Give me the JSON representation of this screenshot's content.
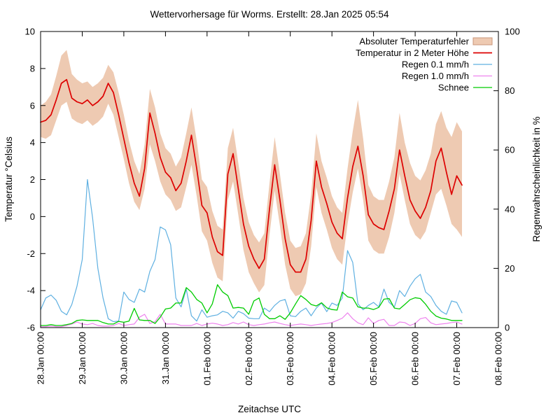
{
  "chart_data": {
    "type": "line",
    "title": "Wettervorhersage für Worms. Erstellt: 28.Jan 2025 05:54",
    "x_label": "Zeitachse UTC",
    "grid": false,
    "legend_position": "top-right-inside",
    "y_left": {
      "label": "Temperatur °Celsius",
      "min": -6,
      "max": 10,
      "ticks": [
        -6,
        -4,
        -2,
        0,
        2,
        4,
        6,
        8,
        10
      ]
    },
    "y_right": {
      "label": "Regenwahrscheinlichkeit in %",
      "min": 0,
      "max": 100,
      "ticks": [
        0,
        20,
        40,
        60,
        80,
        100
      ]
    },
    "x_ticks": [
      "28.Jan 00:00",
      "29.Jan 00:00",
      "30.Jan 00:00",
      "31.Jan 00:00",
      "01.Feb 00:00",
      "02.Feb 00:00",
      "03.Feb 00:00",
      "04.Feb 00:00",
      "05.Feb 00:00",
      "06.Feb 00:00",
      "07.Feb 00:00",
      "08.Feb 00:00"
    ],
    "x_span_days": 11,
    "sample_step_hours": 3,
    "data_end_hour": 243,
    "series": [
      {
        "name": "Absoluter Temperaturfehler",
        "kind": "band",
        "axis": "left",
        "color": "#eecab2",
        "border_color": "#c9977b",
        "upper": [
          6.0,
          6.2,
          6.6,
          7.6,
          8.7,
          9.0,
          7.7,
          7.4,
          7.2,
          7.3,
          7.0,
          7.2,
          7.5,
          8.2,
          7.8,
          6.7,
          5.5,
          4.1,
          3.0,
          2.3,
          3.9,
          6.9,
          5.9,
          4.5,
          3.7,
          3.4,
          2.7,
          3.2,
          4.5,
          5.9,
          4.1,
          2.0,
          1.6,
          0.3,
          -0.5,
          -0.7,
          3.7,
          4.8,
          2.9,
          1.0,
          -0.3,
          -1.0,
          -1.4,
          -0.9,
          1.8,
          4.3,
          2.3,
          0.2,
          -1.3,
          -1.7,
          -1.6,
          -0.9,
          1.2,
          4.5,
          3.0,
          2.1,
          1.1,
          0.5,
          0.2,
          2.6,
          4.6,
          6.3,
          4.2,
          1.7,
          1.1,
          0.9,
          0.9,
          1.9,
          3.2,
          5.6,
          4.0,
          2.9,
          2.2,
          1.95,
          2.5,
          3.4,
          5.0,
          5.7,
          4.8,
          4.3,
          5.1,
          4.6
        ],
        "lower": [
          4.3,
          4.2,
          4.4,
          5.2,
          6.0,
          6.2,
          5.3,
          5.1,
          5.0,
          5.2,
          4.9,
          5.1,
          5.4,
          6.1,
          5.5,
          4.3,
          3.1,
          1.8,
          0.8,
          0.35,
          1.5,
          3.9,
          3.0,
          1.9,
          1.2,
          0.9,
          0.3,
          0.5,
          1.6,
          2.8,
          1.1,
          -0.8,
          -1.3,
          -2.5,
          -3.3,
          -3.5,
          0.9,
          1.9,
          0.1,
          -1.8,
          -3.0,
          -3.6,
          -4.1,
          -3.7,
          -1.0,
          1.4,
          -0.5,
          -2.6,
          -3.9,
          -4.3,
          -4.2,
          -3.6,
          -1.6,
          1.6,
          0.2,
          -0.7,
          -1.7,
          -2.3,
          -2.6,
          -0.4,
          1.3,
          2.6,
          0.9,
          -1.3,
          -1.8,
          -2.0,
          -2.0,
          -1.1,
          0.2,
          2.3,
          0.9,
          -0.4,
          -1.0,
          -1.25,
          -0.8,
          0.2,
          1.2,
          1.5,
          0.6,
          -0.4,
          -0.7,
          -1.1
        ]
      },
      {
        "name": "Temperatur in 2 Meter Höhe",
        "kind": "line",
        "axis": "left",
        "color": "#dd0000",
        "values": [
          5.1,
          5.2,
          5.5,
          6.3,
          7.2,
          7.4,
          6.4,
          6.2,
          6.1,
          6.3,
          6.0,
          6.2,
          6.5,
          7.2,
          6.7,
          5.5,
          4.2,
          2.9,
          1.8,
          1.1,
          2.6,
          5.6,
          4.5,
          3.2,
          2.4,
          2.1,
          1.4,
          1.8,
          3.0,
          4.4,
          2.6,
          0.6,
          0.2,
          -1.1,
          -1.9,
          -2.1,
          2.3,
          3.4,
          1.5,
          -0.4,
          -1.6,
          -2.3,
          -2.8,
          -2.3,
          0.4,
          2.8,
          0.9,
          -1.2,
          -2.6,
          -3.0,
          -3.0,
          -2.3,
          -0.2,
          3.0,
          1.6,
          0.7,
          -0.3,
          -0.9,
          -1.2,
          1.0,
          2.7,
          3.8,
          2.2,
          0.1,
          -0.4,
          -0.6,
          -0.7,
          0.3,
          1.5,
          3.6,
          2.2,
          0.9,
          0.3,
          -0.1,
          0.5,
          1.4,
          3.0,
          3.7,
          2.4,
          1.2,
          2.2,
          1.7
        ]
      },
      {
        "name": "Regen 0.1 mm/h",
        "kind": "line",
        "axis": "right",
        "color": "#5fb0e1",
        "values": [
          6,
          10,
          11,
          9.2,
          5.5,
          4.3,
          7.8,
          14,
          23,
          50,
          37,
          20,
          10,
          3,
          2,
          2.2,
          12,
          9.5,
          8.5,
          13,
          12,
          19,
          23,
          34,
          33,
          28,
          10,
          7,
          13,
          4,
          2.2,
          6,
          3.5,
          4,
          4.3,
          5.5,
          5,
          3.2,
          5.5,
          4.7,
          3.2,
          3,
          3,
          6.6,
          5.4,
          7.5,
          9,
          9.5,
          4,
          3.7,
          5.5,
          6.6,
          4,
          6.6,
          8.3,
          5.4,
          8.3,
          7.5,
          10,
          26,
          22,
          8,
          6,
          7.5,
          8.5,
          7,
          13,
          8.5,
          7,
          12.5,
          10.5,
          14,
          16.5,
          18,
          12,
          10.5,
          7.5,
          5.5,
          4.5,
          9,
          8.5,
          5
        ]
      },
      {
        "name": "Regen 1.0 mm/h",
        "kind": "line",
        "axis": "right",
        "color": "#ee82ee",
        "values": [
          0.3,
          0.3,
          0.5,
          0.3,
          0.3,
          0.7,
          1.2,
          1.9,
          1.2,
          1,
          1.4,
          0.7,
          0.5,
          0.5,
          0.7,
          1.4,
          0.7,
          1,
          1.2,
          3.5,
          4.5,
          1.4,
          2,
          4.5,
          1.2,
          1.2,
          1.2,
          0.7,
          0.7,
          0.7,
          1.4,
          0.7,
          1.2,
          1.5,
          1.2,
          0.7,
          1,
          1.7,
          1.2,
          1.9,
          1,
          0.7,
          1,
          1.2,
          1.6,
          1.9,
          1.4,
          1,
          0.7,
          1,
          1.2,
          1,
          0.7,
          1,
          1.2,
          1.4,
          1.7,
          2.4,
          3.2,
          5,
          3,
          1.6,
          1,
          3.3,
          1.4,
          2.4,
          2.8,
          0.7,
          0.7,
          1.9,
          1.7,
          0.7,
          1.4,
          3,
          3.4,
          1.6,
          1,
          1.2,
          1.4,
          1.7,
          1.9,
          1.2
        ]
      },
      {
        "name": "Schnee",
        "kind": "line",
        "axis": "right",
        "color": "#00cc00",
        "values": [
          0.7,
          0.7,
          1,
          0.7,
          0.7,
          1,
          1.4,
          2.4,
          2.6,
          2.4,
          2.4,
          2.4,
          1.7,
          1.2,
          1.2,
          2.1,
          1.8,
          2.2,
          6.5,
          2.6,
          2.4,
          2.4,
          1.4,
          3.5,
          6.3,
          6.6,
          8.3,
          8.3,
          13.5,
          12,
          9.5,
          8.3,
          5,
          8,
          14.5,
          12,
          10.8,
          6.6,
          6.8,
          6.6,
          4.5,
          9,
          10,
          4.5,
          3,
          3,
          4,
          2.8,
          5,
          8,
          10.8,
          9.5,
          7.8,
          7.3,
          8.4,
          6.7,
          6.1,
          5.9,
          12,
          10.4,
          10,
          7,
          6.6,
          6.6,
          6.1,
          6.8,
          9.6,
          9.8,
          6.6,
          6.3,
          7.8,
          9.4,
          10.1,
          9.8,
          7.9,
          5.5,
          3.9,
          3.2,
          2.9,
          2.4,
          2.4,
          2.4
        ]
      }
    ]
  }
}
